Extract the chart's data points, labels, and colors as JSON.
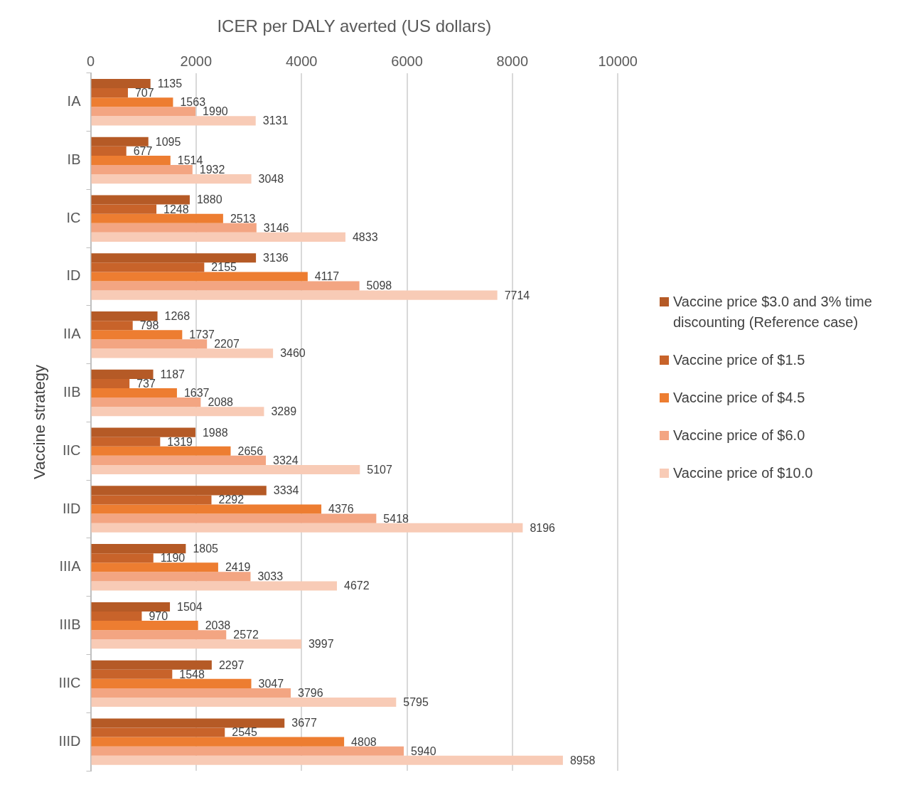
{
  "chart_data": {
    "type": "bar",
    "orientation": "horizontal",
    "xlabel": "ICER per DALY averted (US dollars)",
    "ylabel": "Vaccine strategy",
    "categories": [
      "IA",
      "IB",
      "IC",
      "ID",
      "IIA",
      "IIB",
      "IIC",
      "IID",
      "IIIA",
      "IIIB",
      "IIIC",
      "IIID"
    ],
    "series": [
      {
        "name": "Vaccine price $3.0 and 3% time discounting (Reference case)",
        "color": "#b55a26",
        "values": [
          1135,
          1095,
          1880,
          3136,
          1268,
          1187,
          1988,
          3334,
          1805,
          1504,
          2297,
          3677
        ]
      },
      {
        "name": "Vaccine price of $1.5",
        "color": "#c8632a",
        "values": [
          707,
          677,
          1248,
          2155,
          798,
          737,
          1319,
          2292,
          1190,
          970,
          1548,
          2545
        ]
      },
      {
        "name": "Vaccine price of $4.5",
        "color": "#ed7d31",
        "values": [
          1563,
          1514,
          2513,
          4117,
          1737,
          1637,
          2656,
          4376,
          2419,
          2038,
          3047,
          4808
        ]
      },
      {
        "name": "Vaccine price of $6.0",
        "color": "#f3a582",
        "values": [
          1990,
          1932,
          3146,
          5098,
          2207,
          2088,
          3324,
          5418,
          3033,
          2572,
          3796,
          5940
        ]
      },
      {
        "name": "Vaccine price of $10.0",
        "color": "#f8cbb6",
        "values": [
          3131,
          3048,
          4833,
          7714,
          3460,
          3289,
          5107,
          8196,
          4672,
          3997,
          5795,
          8958
        ]
      }
    ],
    "xlim": [
      0,
      10000
    ],
    "xticks": [
      0,
      2000,
      4000,
      6000,
      8000,
      10000
    ],
    "grid": "x",
    "legend": "right",
    "data_labels": true
  }
}
